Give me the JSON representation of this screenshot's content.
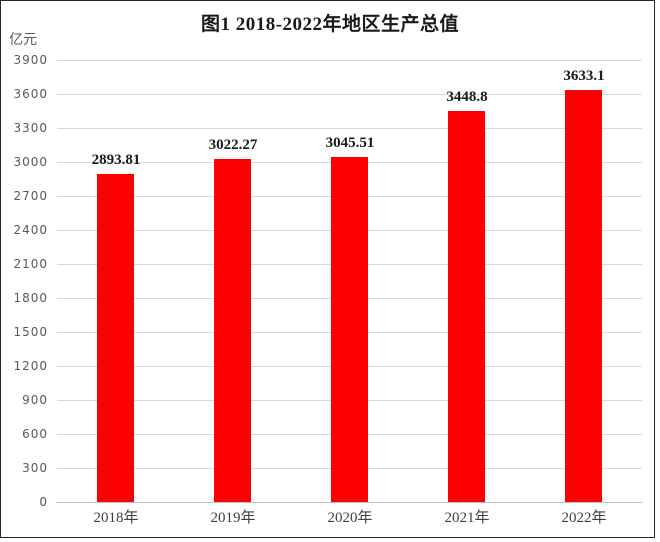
{
  "window": {
    "background_color": "#ffffff",
    "frame_border_color": "#262626"
  },
  "chart_data": {
    "type": "bar",
    "title": "图1 2018-2022年地区生产总值",
    "unit_label": "亿元",
    "categories": [
      "2018年",
      "2019年",
      "2020年",
      "2021年",
      "2022年"
    ],
    "values": [
      2893.81,
      3022.27,
      3045.51,
      3448.8,
      3633.1
    ],
    "value_labels": [
      "2893.81",
      "3022.27",
      "3045.51",
      "3448.8",
      "3633.1"
    ],
    "xlabel": "",
    "ylabel": "亿元",
    "ylim": [
      0,
      3900
    ],
    "ytick_step": 300,
    "yticks": [
      0,
      300,
      600,
      900,
      1200,
      1500,
      1800,
      2100,
      2400,
      2700,
      3000,
      3300,
      3600,
      3900
    ],
    "grid": true,
    "legend_position": "none",
    "bar_color": "#ff0000",
    "gridline_color": "#d9d9d9",
    "axis_line_color": "#bfbfbf",
    "tick_label_color": "#595959",
    "category_label_color": "#404040",
    "data_label_color": "#1a1a1a"
  }
}
